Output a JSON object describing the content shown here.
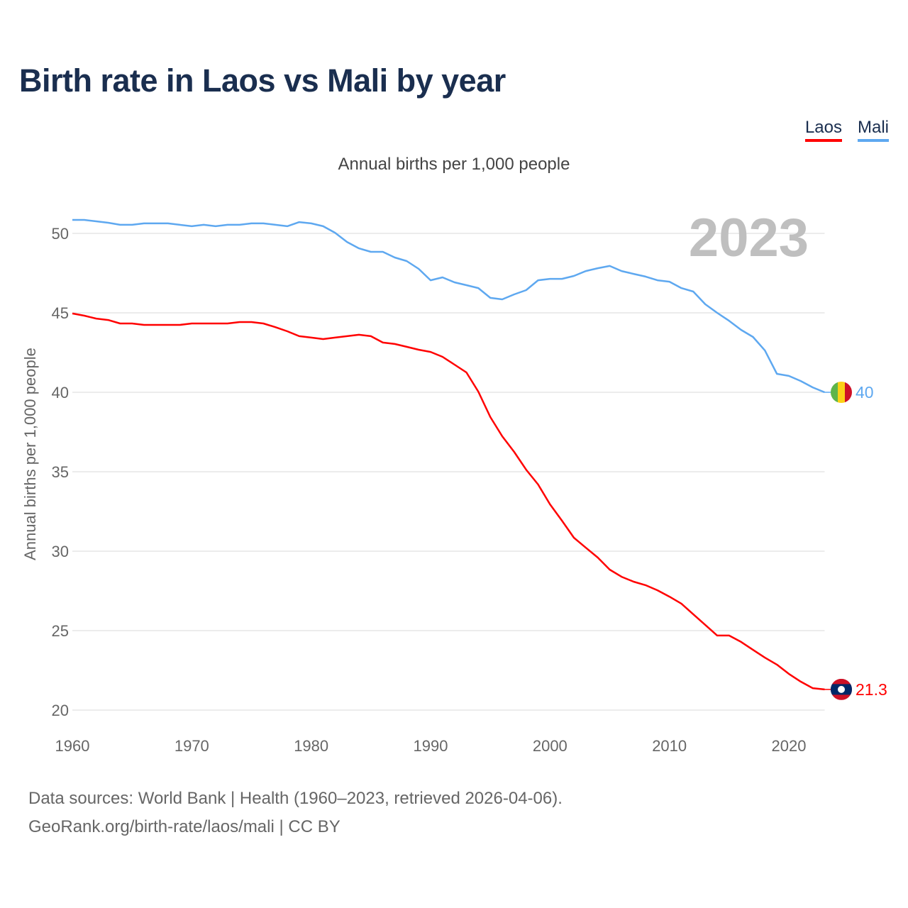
{
  "title": "Birth rate in Laos vs Mali by year",
  "footer": {
    "line1": "Data sources: World Bank | Health (1960–2023, retrieved 2026-04-06).",
    "line2": "GeoRank.org/birth-rate/laos/mali | CC BY"
  },
  "chart_data": {
    "type": "line",
    "title": "Birth rate in Laos vs Mali by year",
    "subtitle": "Annual births per 1,000 people",
    "ylabel": "Annual births per 1,000 people",
    "xlabel": "",
    "year_watermark": "2023",
    "xlim": [
      1960,
      2023
    ],
    "ylim": [
      20,
      52
    ],
    "x_ticks": [
      "1960",
      "1970",
      "1980",
      "1990",
      "2000",
      "2010",
      "2020"
    ],
    "y_ticks": [
      "20",
      "25",
      "30",
      "35",
      "40",
      "45",
      "50"
    ],
    "grid": true,
    "legend_position": "top-right",
    "x": [
      1960,
      1961,
      1962,
      1963,
      1964,
      1965,
      1966,
      1967,
      1968,
      1969,
      1970,
      1971,
      1972,
      1973,
      1974,
      1975,
      1976,
      1977,
      1978,
      1979,
      1980,
      1981,
      1982,
      1983,
      1984,
      1985,
      1986,
      1987,
      1988,
      1989,
      1990,
      1991,
      1992,
      1993,
      1994,
      1995,
      1996,
      1997,
      1998,
      1999,
      2000,
      2001,
      2002,
      2003,
      2004,
      2005,
      2006,
      2007,
      2008,
      2009,
      2010,
      2011,
      2012,
      2013,
      2014,
      2015,
      2016,
      2017,
      2018,
      2019,
      2020,
      2021,
      2022,
      2023
    ],
    "series": [
      {
        "name": "Laos",
        "color": "#ff0000",
        "end_label": "21.3",
        "values": [
          44.96,
          44.82,
          44.64,
          44.55,
          44.33,
          44.33,
          44.24,
          44.24,
          44.24,
          44.24,
          44.33,
          44.33,
          44.33,
          44.33,
          44.42,
          44.42,
          44.33,
          44.1,
          43.84,
          43.53,
          43.44,
          43.35,
          43.44,
          43.53,
          43.62,
          43.53,
          43.13,
          43.04,
          42.86,
          42.68,
          42.54,
          42.23,
          41.74,
          41.25,
          40.04,
          38.44,
          37.23,
          36.25,
          35.13,
          34.2,
          32.95,
          31.92,
          30.85,
          30.22,
          29.6,
          28.84,
          28.39,
          28.08,
          27.86,
          27.54,
          27.14,
          26.7,
          26.03,
          25.36,
          24.69,
          24.69,
          24.29,
          23.79,
          23.3,
          22.86,
          22.28,
          21.79,
          21.38,
          21.3
        ]
      },
      {
        "name": "Mali",
        "color": "#5ea8f0",
        "end_label": "40",
        "values": [
          50.85,
          50.85,
          50.76,
          50.67,
          50.54,
          50.54,
          50.63,
          50.63,
          50.63,
          50.54,
          50.45,
          50.54,
          50.45,
          50.54,
          50.54,
          50.63,
          50.63,
          50.54,
          50.45,
          50.71,
          50.63,
          50.45,
          50.04,
          49.46,
          49.06,
          48.84,
          48.84,
          48.48,
          48.26,
          47.77,
          47.05,
          47.23,
          46.92,
          46.74,
          46.56,
          45.94,
          45.85,
          46.16,
          46.43,
          47.05,
          47.14,
          47.14,
          47.32,
          47.63,
          47.81,
          47.95,
          47.63,
          47.45,
          47.28,
          47.05,
          46.96,
          46.56,
          46.34,
          45.54,
          45.0,
          44.5,
          43.93,
          43.48,
          42.63,
          41.16,
          41.03,
          40.71,
          40.31,
          40.0
        ]
      }
    ]
  }
}
